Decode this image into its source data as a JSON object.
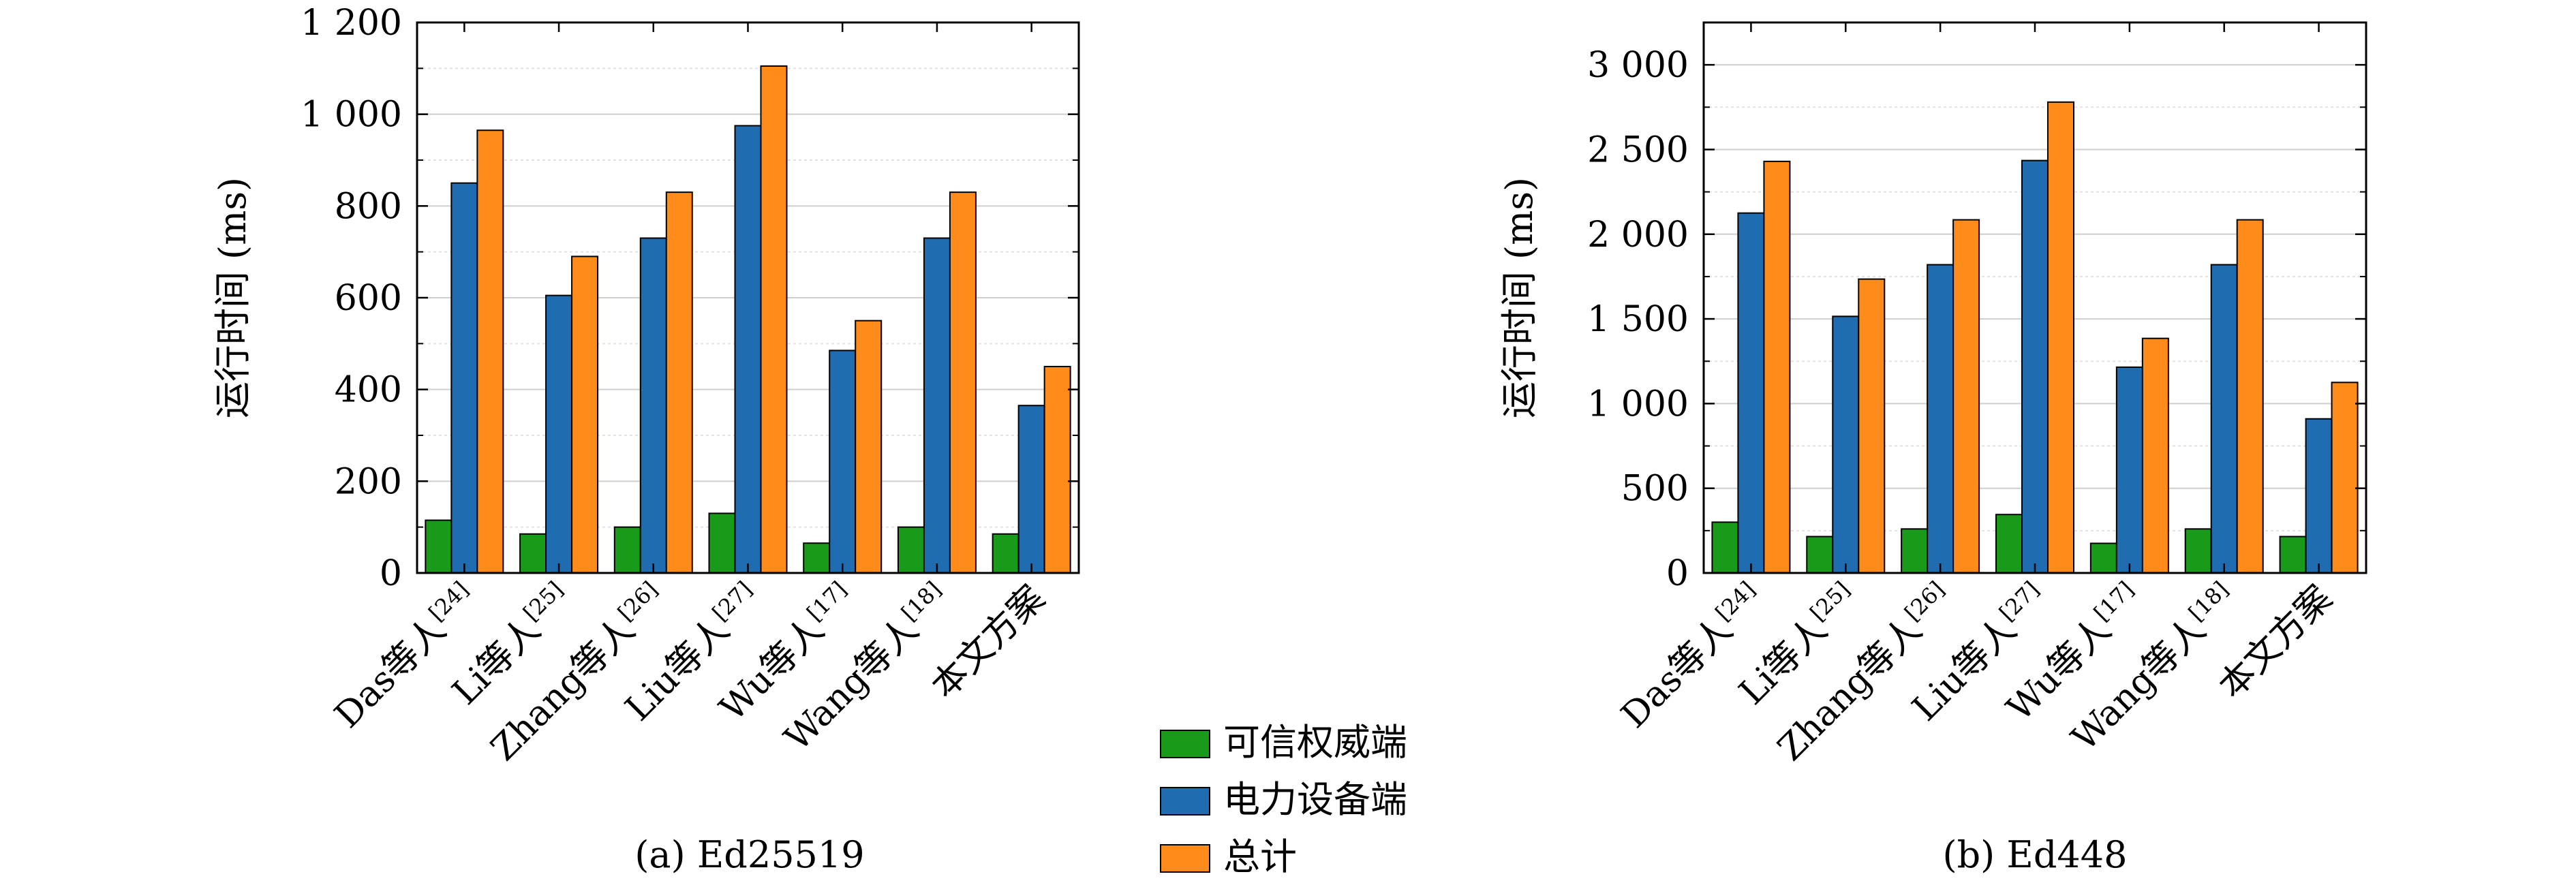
{
  "chart_data": [
    {
      "type": "bar",
      "caption": "(a) Ed25519",
      "ylabel": "运行时间 (ms)",
      "ylim": [
        0,
        1200
      ],
      "yticks": [
        0,
        200,
        400,
        600,
        800,
        1000,
        1200
      ],
      "ytick_labels": [
        "0",
        "200",
        "400",
        "600",
        "800",
        "1 000",
        "1 200"
      ],
      "grid": true,
      "categories": [
        {
          "name": "Das等人",
          "ref": "[24]"
        },
        {
          "name": "Li等人",
          "ref": "[25]"
        },
        {
          "name": "Zhang等人",
          "ref": "[26]"
        },
        {
          "name": "Liu等人",
          "ref": "[27]"
        },
        {
          "name": "Wu等人",
          "ref": "[17]"
        },
        {
          "name": "Wang等人",
          "ref": "[18]"
        },
        {
          "name": "本文方案",
          "ref": ""
        }
      ],
      "series": [
        {
          "name": "可信权威端",
          "color": "#1a9a1a",
          "values": [
            115,
            85,
            100,
            130,
            65,
            100,
            85
          ]
        },
        {
          "name": "电力设备端",
          "color": "#1f6cb0",
          "values": [
            850,
            605,
            730,
            975,
            485,
            730,
            365
          ]
        },
        {
          "name": "总计",
          "color": "#ff8c1a",
          "values": [
            965,
            690,
            830,
            1105,
            550,
            830,
            450
          ]
        }
      ]
    },
    {
      "type": "bar",
      "caption": "(b) Ed448",
      "ylabel": "运行时间 (ms)",
      "ylim": [
        0,
        3250
      ],
      "yticks": [
        0,
        500,
        1000,
        1500,
        2000,
        2500,
        3000
      ],
      "ytick_labels": [
        "0",
        "500",
        "1 000",
        "1 500",
        "2 000",
        "2 500",
        "3 000"
      ],
      "grid": true,
      "categories": [
        {
          "name": "Das等人",
          "ref": "[24]"
        },
        {
          "name": "Li等人",
          "ref": "[25]"
        },
        {
          "name": "Zhang等人",
          "ref": "[26]"
        },
        {
          "name": "Liu等人",
          "ref": "[27]"
        },
        {
          "name": "Wu等人",
          "ref": "[17]"
        },
        {
          "name": "Wang等人",
          "ref": "[18]"
        },
        {
          "name": "本文方案",
          "ref": ""
        }
      ],
      "series": [
        {
          "name": "可信权威端",
          "color": "#1a9a1a",
          "values": [
            300,
            215,
            260,
            345,
            175,
            260,
            215
          ]
        },
        {
          "name": "电力设备端",
          "color": "#1f6cb0",
          "values": [
            2125,
            1515,
            1820,
            2435,
            1215,
            1820,
            910
          ]
        },
        {
          "name": "总计",
          "color": "#ff8c1a",
          "values": [
            2430,
            1735,
            2085,
            2780,
            1385,
            2085,
            1125
          ]
        }
      ]
    }
  ],
  "legend": {
    "placement": "bottom-center",
    "entries": [
      {
        "name": "可信权威端",
        "color": "#1a9a1a"
      },
      {
        "name": "电力设备端",
        "color": "#1f6cb0"
      },
      {
        "name": "总计",
        "color": "#ff8c1a"
      }
    ]
  }
}
